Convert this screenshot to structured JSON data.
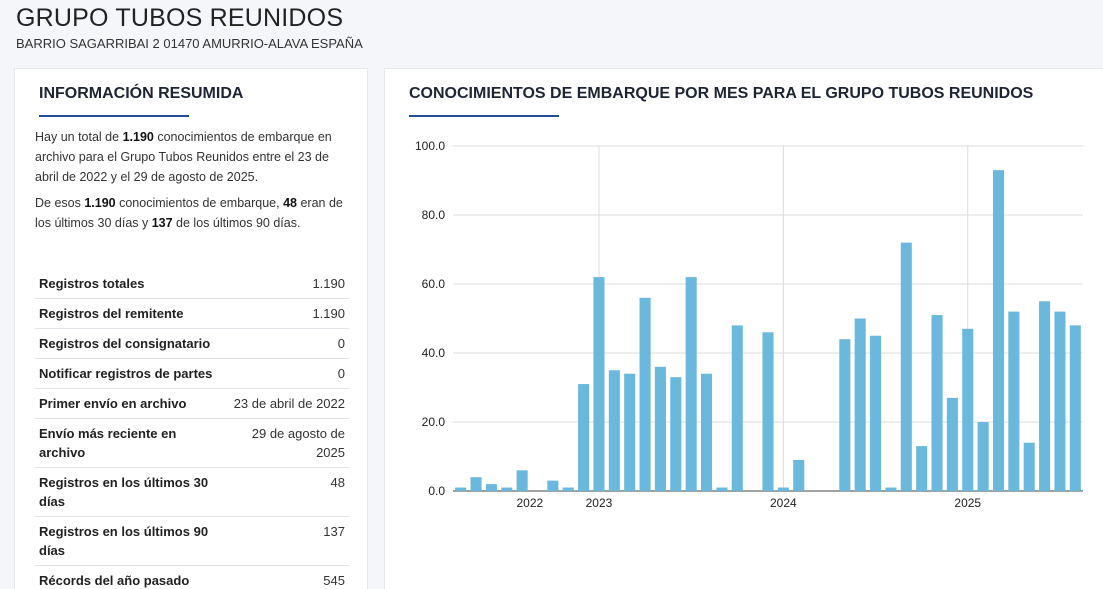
{
  "header": {
    "title": "GRUPO TUBOS REUNIDOS",
    "address": "BARRIO SAGARRIBAI 2 01470 AMURRIO-ALAVA ESPAÑA"
  },
  "summary": {
    "title": "INFORMACIÓN RESUMIDA",
    "p1_pre": "Hay un total de ",
    "p1_total": "1.190",
    "p1_post": " conocimientos de embarque en archivo para el Grupo Tubos Reunidos entre el 23 de abril de 2022 y el 29 de agosto de 2025.",
    "p2_pre": "De esos ",
    "p2_total": "1.190",
    "p2_mid1": " conocimientos de embarque, ",
    "p2_30": "48",
    "p2_mid2": " eran de los últimos 30 días y ",
    "p2_90": "137",
    "p2_post": " de los últimos 90 días.",
    "rows": [
      {
        "label": "Registros totales",
        "value": "1.190"
      },
      {
        "label": "Registros del remitente",
        "value": "1.190"
      },
      {
        "label": "Registros del consignatario",
        "value": "0"
      },
      {
        "label": "Notificar registros de partes",
        "value": "0"
      },
      {
        "label": "Primer envío en archivo",
        "value": "23 de abril de 2022"
      },
      {
        "label": "Envío más reciente en archivo",
        "value": "29 de agosto de 2025"
      },
      {
        "label": "Registros en los últimos 30 días",
        "value": "48"
      },
      {
        "label": "Registros en los últimos 90 días",
        "value": "137"
      },
      {
        "label": "Récords del año pasado",
        "value": "545"
      }
    ]
  },
  "chart_panel": {
    "title": "CONOCIMIENTOS DE EMBARQUE POR MES PARA EL GRUPO TUBOS REUNIDOS"
  },
  "chart_data": {
    "type": "bar",
    "title": "CONOCIMIENTOS DE EMBARQUE POR MES PARA EL GRUPO TUBOS REUNIDOS",
    "ylim": [
      0,
      100
    ],
    "yticks": [
      "0.0",
      "20.0",
      "40.0",
      "60.0",
      "80.0",
      "100.0"
    ],
    "xticks": [
      "2022",
      "2023",
      "2024",
      "2025"
    ],
    "categories": [
      "2022-04",
      "2022-05",
      "2022-06",
      "2022-07",
      "2022-08",
      "2022-09",
      "2022-10",
      "2022-11",
      "2022-12",
      "2023-01",
      "2023-02",
      "2023-03",
      "2023-04",
      "2023-05",
      "2023-06",
      "2023-07",
      "2023-08",
      "2023-09",
      "2023-10",
      "2023-11",
      "2023-12",
      "2024-01",
      "2024-02",
      "2024-03",
      "2024-04",
      "2024-05",
      "2024-06",
      "2024-07",
      "2024-08",
      "2024-09",
      "2024-10",
      "2024-11",
      "2024-12",
      "2025-01",
      "2025-02",
      "2025-03",
      "2025-04",
      "2025-05",
      "2025-06",
      "2025-07",
      "2025-08"
    ],
    "values": [
      1,
      4,
      2,
      1,
      6,
      0,
      3,
      1,
      31,
      62,
      35,
      34,
      56,
      36,
      33,
      62,
      34,
      1,
      48,
      0,
      46,
      1,
      9,
      0,
      0,
      44,
      50,
      45,
      1,
      72,
      13,
      51,
      27,
      47,
      20,
      93,
      52,
      14,
      55,
      52,
      48
    ],
    "grid": true,
    "color": "#6bb8dd"
  }
}
